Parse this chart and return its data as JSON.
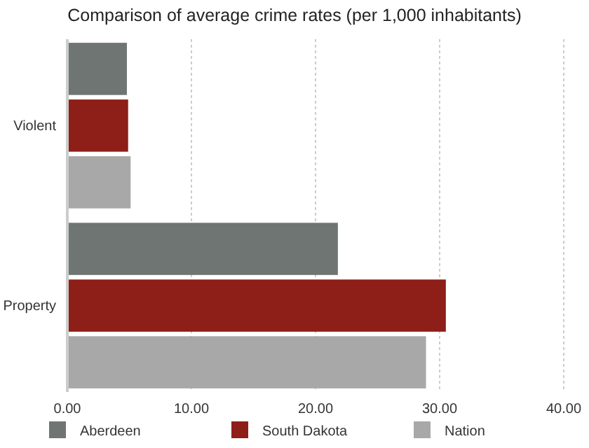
{
  "chart_data": {
    "type": "bar",
    "orientation": "horizontal",
    "title": "Comparison of average crime rates (per 1,000 inhabitants)",
    "categories": [
      "Violent",
      "Property"
    ],
    "series": [
      {
        "name": "Aberdeen",
        "color": "#6f7572",
        "values": [
          4.8,
          21.8
        ]
      },
      {
        "name": "South Dakota",
        "color": "#8e1e18",
        "values": [
          4.9,
          30.5
        ]
      },
      {
        "name": "Nation",
        "color": "#a8a8a8",
        "values": [
          5.1,
          28.9
        ]
      }
    ],
    "xlim": [
      0,
      40
    ],
    "xticks": [
      {
        "value": 0,
        "label": "0.00"
      },
      {
        "value": 10,
        "label": "10.00"
      },
      {
        "value": 20,
        "label": "20.00"
      },
      {
        "value": 30,
        "label": "30.00"
      },
      {
        "value": 40,
        "label": "40.00"
      }
    ],
    "grid": "x",
    "legend": "bottom"
  }
}
